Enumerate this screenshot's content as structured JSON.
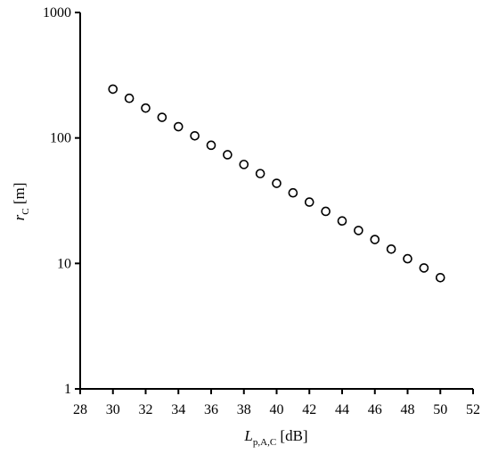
{
  "chart_data": {
    "type": "scatter",
    "x": [
      30,
      31,
      32,
      33,
      34,
      35,
      36,
      37,
      38,
      39,
      40,
      41,
      42,
      43,
      44,
      45,
      46,
      47,
      48,
      49,
      50
    ],
    "y": [
      245,
      207,
      173,
      146,
      123,
      104,
      87.5,
      73.5,
      61.5,
      52,
      43.5,
      36.5,
      30.8,
      26,
      21.8,
      18.3,
      15.5,
      13,
      10.9,
      9.2,
      7.7
    ],
    "xlim": [
      28,
      52
    ],
    "ylim": [
      1,
      1000
    ],
    "yscale": "log",
    "x_ticks": [
      "28",
      "30",
      "32",
      "34",
      "36",
      "38",
      "40",
      "42",
      "44",
      "46",
      "48",
      "50",
      "52"
    ],
    "y_ticks": [
      "1",
      "10",
      "100",
      "1000"
    ],
    "xlabel": {
      "main": "L",
      "sub": "p,A,C",
      "unit": " [dB]"
    },
    "ylabel": {
      "main": "r",
      "sub": "C",
      "unit": " [m]"
    },
    "grid": false,
    "marker": "open-circle",
    "marker_color": "#000000"
  }
}
